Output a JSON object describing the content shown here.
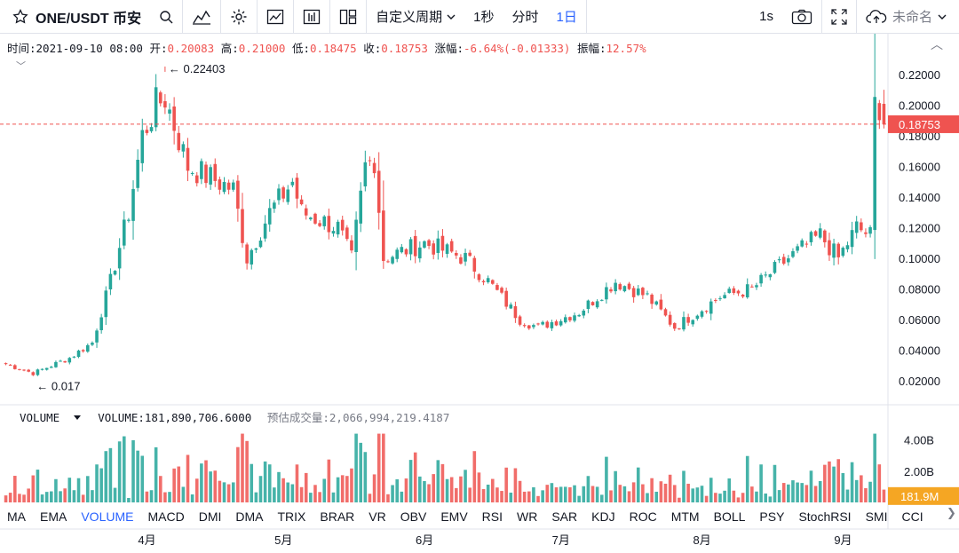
{
  "toolbar": {
    "symbol": "ONE/USDT 币安",
    "period_label": "自定义周期",
    "intervals": [
      "1秒",
      "分时",
      "1日"
    ],
    "active_interval": "1日",
    "refresh_label": "1s",
    "layout_name": "未命名"
  },
  "ohlc": {
    "time_label": "时间:",
    "time": "2021-09-10 08:00",
    "open_label": "开:",
    "open": "0.20083",
    "high_label": "高:",
    "high": "0.21000",
    "low_label": "低:",
    "low": "0.18475",
    "close_label": "收:",
    "close": "0.18753",
    "change_label": "涨幅:",
    "change": "-6.64%(-0.01333)",
    "amplitude_label": "振幅:",
    "amplitude": "12.57%"
  },
  "price_axis": {
    "ticks": [
      "0.22000",
      "0.20000",
      "0.18000",
      "0.16000",
      "0.14000",
      "0.12000",
      "0.10000",
      "0.08000",
      "0.06000",
      "0.04000",
      "0.02000"
    ],
    "current_price": "0.18753",
    "high_marker": "0.22403",
    "low_marker": "0.017"
  },
  "volume": {
    "name": "VOLUME",
    "value_label": "VOLUME:",
    "value": "181,890,706.6000",
    "est_label": "预估成交量:",
    "est_value": "2,066,994,219.4187",
    "ticks": [
      "4.00B",
      "2.00B"
    ],
    "current": "181.9M"
  },
  "time_axis": [
    "4月",
    "5月",
    "6月",
    "7月",
    "8月",
    "9月"
  ],
  "indicators": [
    "MA",
    "EMA",
    "VOLUME",
    "MACD",
    "DMI",
    "DMA",
    "TRIX",
    "BRAR",
    "VR",
    "OBV",
    "EMV",
    "RSI",
    "WR",
    "SAR",
    "KDJ",
    "ROC",
    "MTM",
    "BOLL",
    "PSY",
    "StochRSI",
    "SMI",
    "CCI"
  ],
  "active_indicator": "VOLUME",
  "colors": {
    "up": "#26a69a",
    "down": "#ef5350",
    "accent": "#2962ff",
    "price_tag": "#ef5350",
    "volume_tag": "#f5a623"
  },
  "chart_data": {
    "type": "candlestick",
    "anchor_points": [
      {
        "date": "2021-03-01",
        "close": 0.031
      },
      {
        "date": "2021-03-07",
        "close": 0.025
      },
      {
        "date": "2021-03-15",
        "close": 0.035
      },
      {
        "date": "2021-03-20",
        "close": 0.045
      },
      {
        "date": "2021-03-24",
        "close": 0.085
      },
      {
        "date": "2021-03-28",
        "close": 0.13
      },
      {
        "date": "2021-03-31",
        "close": 0.18
      },
      {
        "date": "2021-04-03",
        "close": 0.2
      },
      {
        "date": "2021-04-05",
        "close": 0.205
      },
      {
        "date": "2021-04-10",
        "close": 0.16
      },
      {
        "date": "2021-04-20",
        "close": 0.145
      },
      {
        "date": "2021-04-23",
        "close": 0.1
      },
      {
        "date": "2021-04-28",
        "close": 0.13
      },
      {
        "date": "2021-05-03",
        "close": 0.15
      },
      {
        "date": "2021-05-05",
        "close": 0.13
      },
      {
        "date": "2021-05-13",
        "close": 0.12
      },
      {
        "date": "2021-05-16",
        "close": 0.1
      },
      {
        "date": "2021-05-19",
        "close": 0.16
      },
      {
        "date": "2021-05-21",
        "close": 0.165
      },
      {
        "date": "2021-05-23",
        "close": 0.1
      },
      {
        "date": "2021-06-01",
        "close": 0.11
      },
      {
        "date": "2021-06-10",
        "close": 0.1
      },
      {
        "date": "2021-06-15",
        "close": 0.085
      },
      {
        "date": "2021-06-22",
        "close": 0.06
      },
      {
        "date": "2021-06-26",
        "close": 0.055
      },
      {
        "date": "2021-07-05",
        "close": 0.065
      },
      {
        "date": "2021-07-13",
        "close": 0.085
      },
      {
        "date": "2021-07-20",
        "close": 0.075
      },
      {
        "date": "2021-07-26",
        "close": 0.055
      },
      {
        "date": "2021-08-05",
        "close": 0.075
      },
      {
        "date": "2021-08-12",
        "close": 0.08
      },
      {
        "date": "2021-08-20",
        "close": 0.1
      },
      {
        "date": "2021-08-27",
        "close": 0.115
      },
      {
        "date": "2021-08-31",
        "close": 0.1
      },
      {
        "date": "2021-09-04",
        "close": 0.12
      },
      {
        "date": "2021-09-07",
        "close": 0.115
      },
      {
        "date": "2021-09-08",
        "close": 0.2
      },
      {
        "date": "2021-09-09",
        "close": 0.201
      },
      {
        "date": "2021-09-10",
        "close": 0.18753
      }
    ],
    "y_range": [
      0.005,
      0.235
    ],
    "volume_range_B": [
      0,
      5
    ],
    "up_color": "#26a69a",
    "down_color": "#ef5350"
  }
}
